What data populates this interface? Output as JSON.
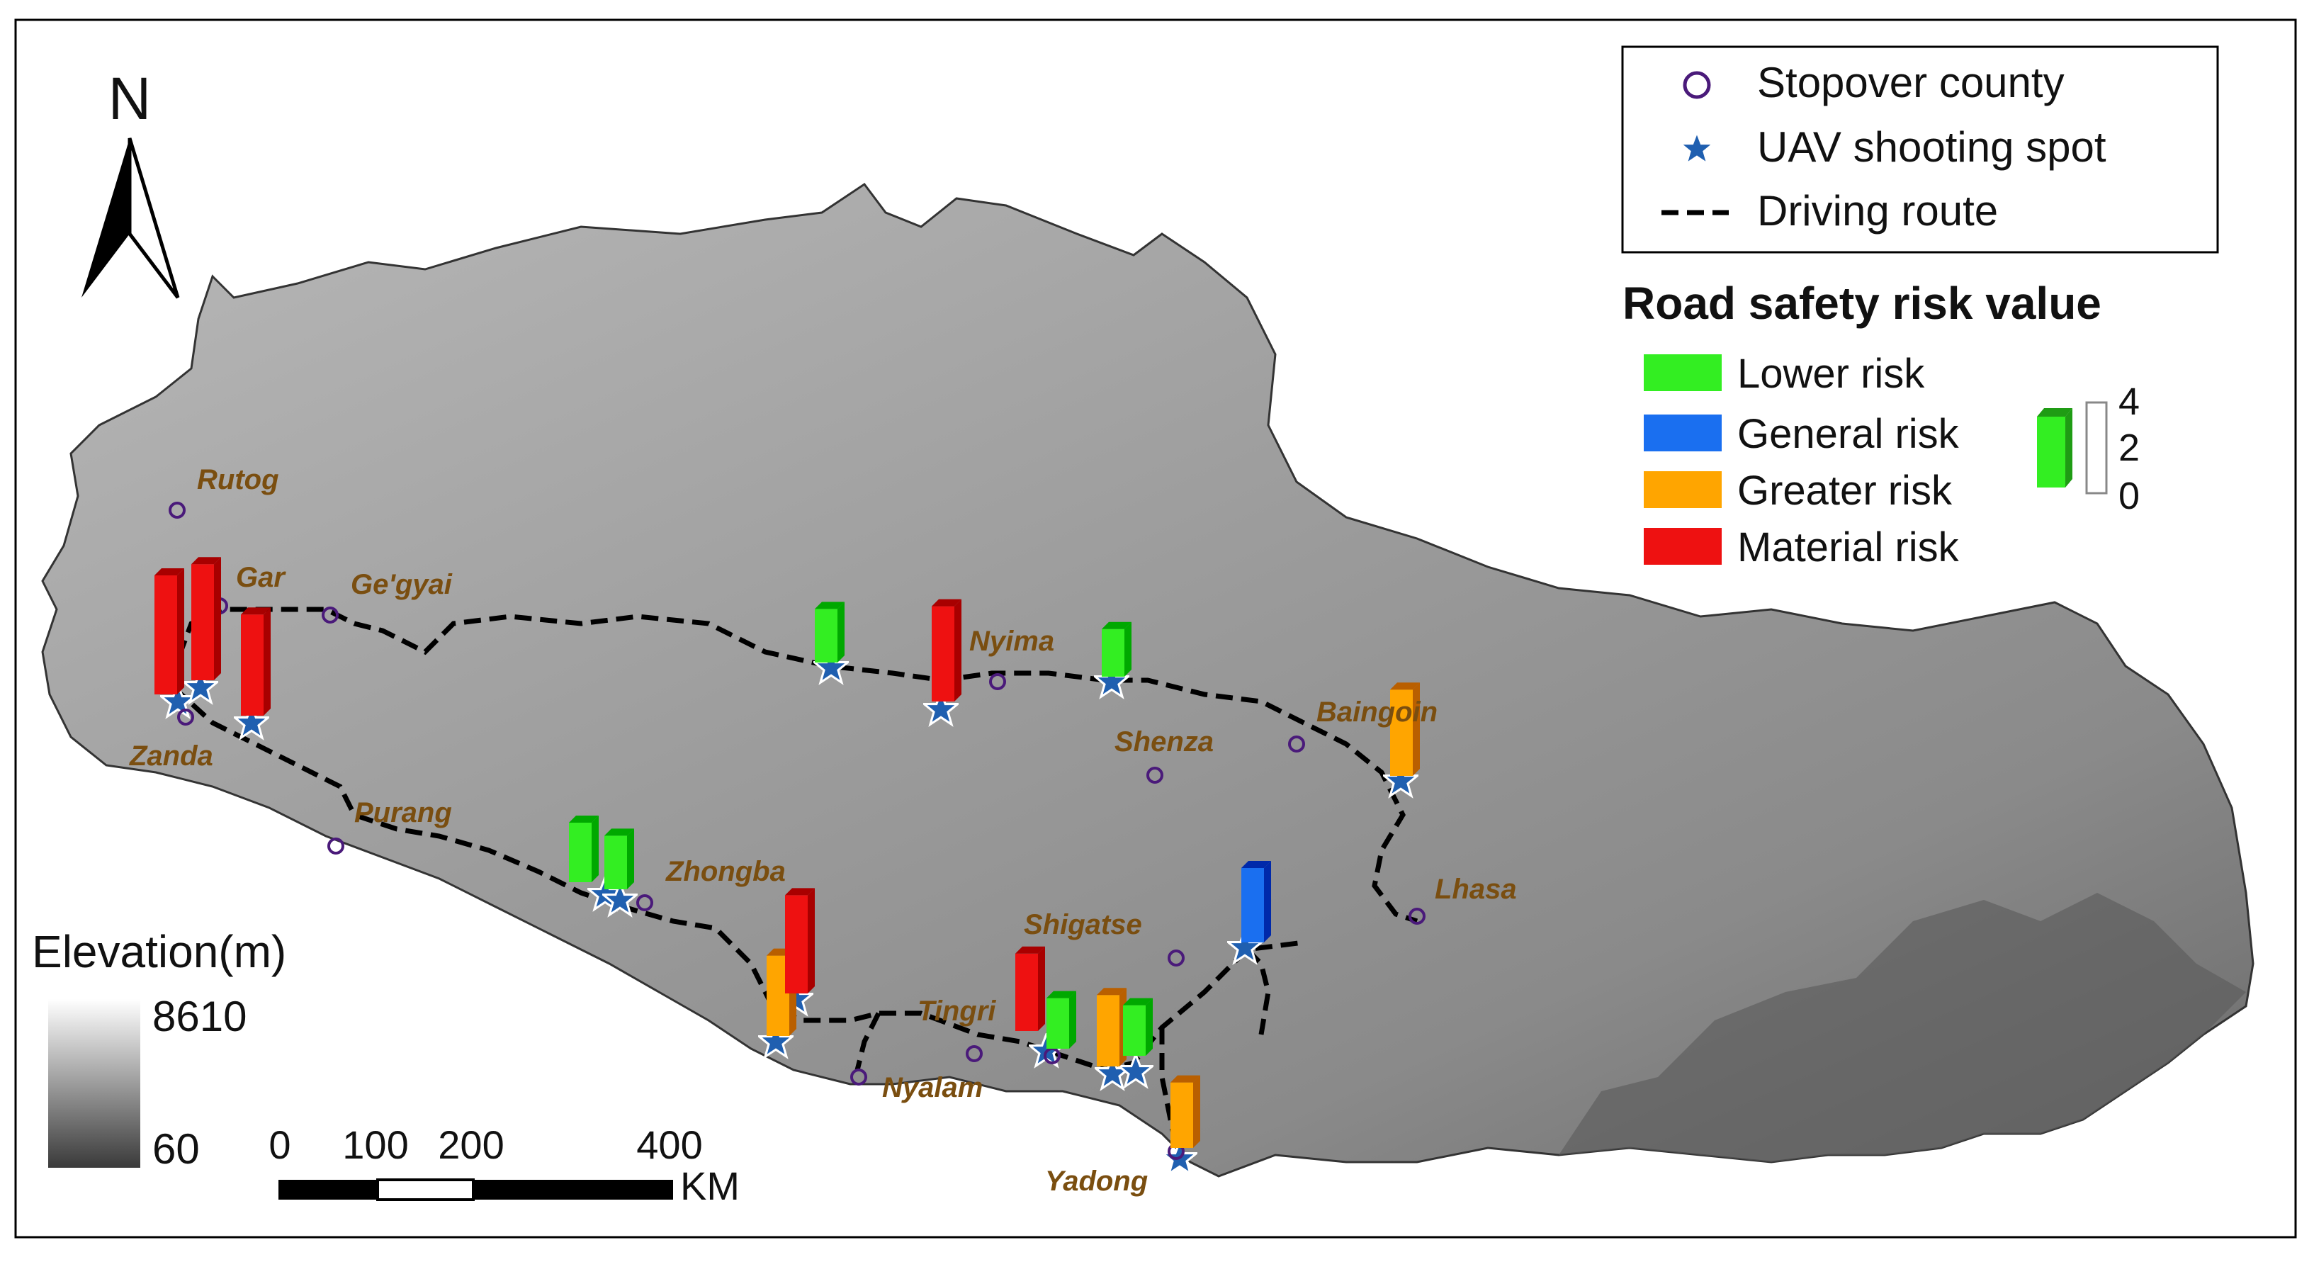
{
  "north_label": "N",
  "legend": {
    "stopover_label": "Stopover county",
    "uav_label": "UAV shooting spot",
    "route_label": "Driving route"
  },
  "risk_legend": {
    "title": "Road safety risk value",
    "items": [
      {
        "label": "Lower risk",
        "color": "#33ee22"
      },
      {
        "label": "General risk",
        "color": "#1a6ff0"
      },
      {
        "label": "Greater risk",
        "color": "#ffa500"
      },
      {
        "label": "Material risk",
        "color": "#ee1111"
      }
    ],
    "scale_ticks": [
      "4",
      "2",
      "0"
    ]
  },
  "elevation": {
    "title": "Elevation(m)",
    "max_label": "8610",
    "min_label": "60"
  },
  "scalebar": {
    "ticks": [
      "0",
      "100",
      "200",
      "400"
    ],
    "unit": "KM"
  },
  "places": [
    "Rutog",
    "Gar",
    "Ge'gyai",
    "Zanda",
    "Purang",
    "Nyima",
    "Shenza",
    "Baingoin",
    "Zhongba",
    "Lhasa",
    "Shigatse",
    "Tingri",
    "Nyalam",
    "Yadong"
  ],
  "risk_bars": [
    {
      "risk": "Material risk",
      "value": 4.0
    },
    {
      "risk": "Material risk",
      "value": 3.9
    },
    {
      "risk": "Material risk",
      "value": 3.4
    },
    {
      "risk": "Lower risk",
      "value": 1.8
    },
    {
      "risk": "Material risk",
      "value": 3.2
    },
    {
      "risk": "Lower risk",
      "value": 1.6
    },
    {
      "risk": "Greater risk",
      "value": 2.9
    },
    {
      "risk": "Lower risk",
      "value": 2.0
    },
    {
      "risk": "Lower risk",
      "value": 1.8
    },
    {
      "risk": "Greater risk",
      "value": 2.7
    },
    {
      "risk": "Material risk",
      "value": 3.3
    },
    {
      "risk": "General risk",
      "value": 2.5
    },
    {
      "risk": "Material risk",
      "value": 2.6
    },
    {
      "risk": "Lower risk",
      "value": 1.7
    },
    {
      "risk": "Greater risk",
      "value": 2.4
    },
    {
      "risk": "Lower risk",
      "value": 1.7
    },
    {
      "risk": "Greater risk",
      "value": 2.2
    }
  ]
}
